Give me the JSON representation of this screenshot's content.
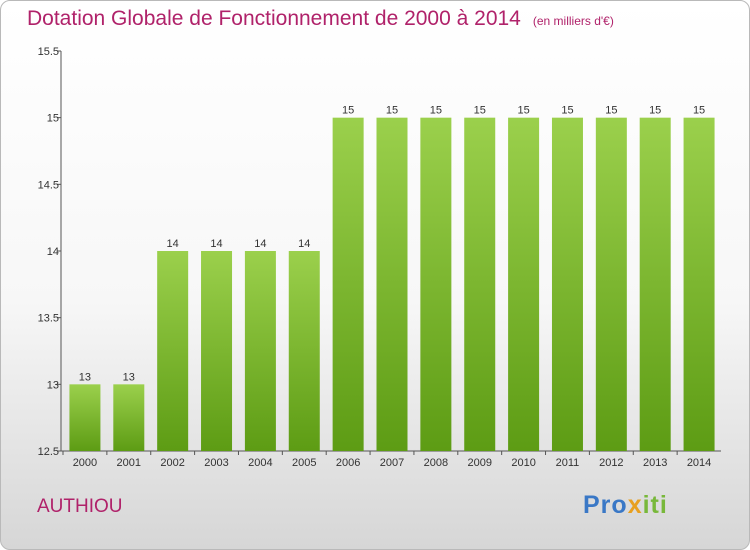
{
  "header": {
    "title": "Dotation Globale de Fonctionnement de 2000 à 2014",
    "subtitle": "(en milliers d'€)"
  },
  "footer": {
    "commune": "AUTHIOU",
    "logo_parts": [
      "Pro",
      "x",
      "iti"
    ]
  },
  "colors": {
    "title": "#b0226a",
    "bar_top": "#9bd04c",
    "bar_bottom": "#5d9c14"
  },
  "chart_data": {
    "type": "bar",
    "title": "Dotation Globale de Fonctionnement de 2000 à 2014",
    "categories": [
      "2000",
      "2001",
      "2002",
      "2003",
      "2004",
      "2005",
      "2006",
      "2007",
      "2008",
      "2009",
      "2010",
      "2011",
      "2012",
      "2013",
      "2014"
    ],
    "values": [
      13,
      13,
      14,
      14,
      14,
      14,
      15,
      15,
      15,
      15,
      15,
      15,
      15,
      15,
      15
    ],
    "ylim": [
      12.5,
      15.5
    ],
    "yticks": [
      "12.5",
      "13",
      "13.5",
      "14",
      "14.5",
      "15",
      "15.5"
    ],
    "xlabel": "",
    "ylabel": "",
    "grid": false,
    "legend": "none"
  }
}
